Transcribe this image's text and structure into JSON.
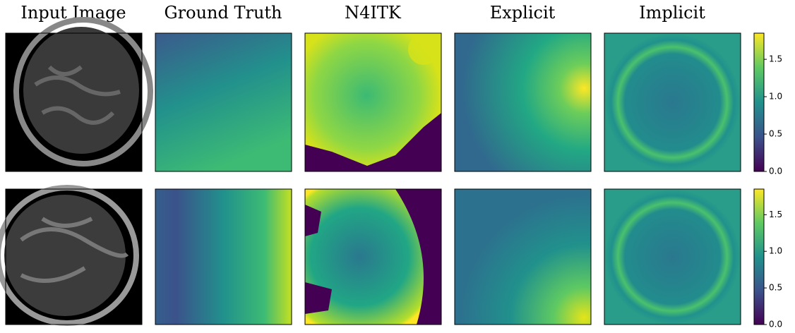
{
  "columns": [
    "Input Image",
    "Ground Truth",
    "N4ITK",
    "Explicit",
    "Implicit"
  ],
  "colorbar": {
    "vmin": 0,
    "vmax": 1.85,
    "ticks": [
      {
        "value": 0,
        "label": "0.0"
      },
      0.5,
      {
        "value": 1,
        "label": "1.0"
      },
      1.5
    ]
  }
}
